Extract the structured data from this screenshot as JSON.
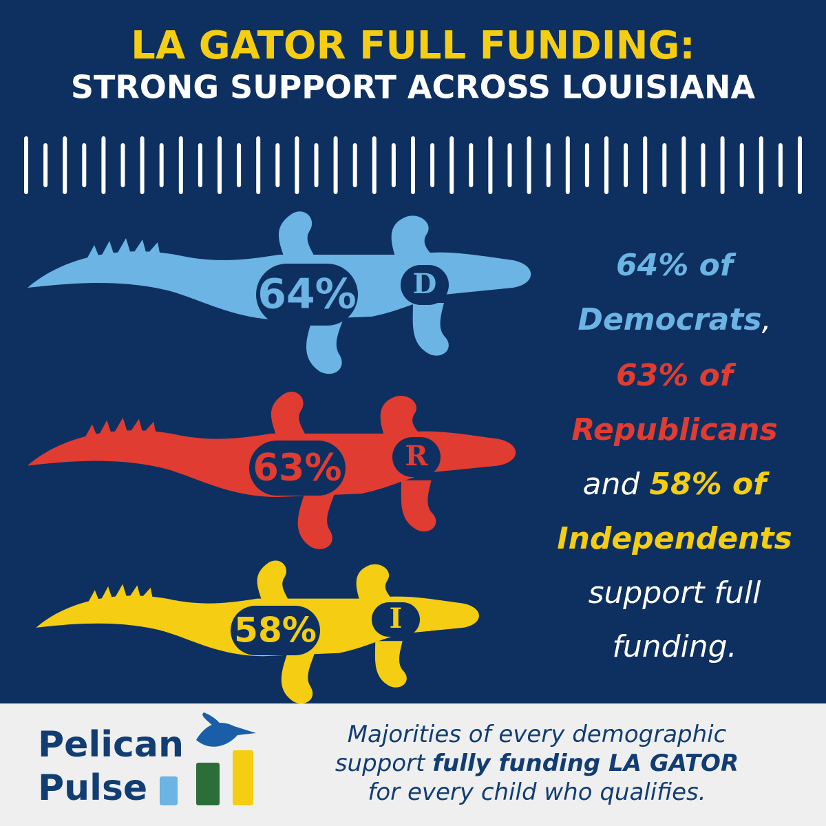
{
  "header": {
    "title": "LA GATOR FULL FUNDING:",
    "subtitle": "STRONG SUPPORT ACROSS LOUISIANA"
  },
  "gators": [
    {
      "percent": "64%",
      "letter": "D",
      "color": "#6cb4e4"
    },
    {
      "percent": "63%",
      "letter": "R",
      "color": "#e03c31"
    },
    {
      "percent": "58%",
      "letter": "I",
      "color": "#f5cd12"
    }
  ],
  "statement": [
    [
      {
        "text": "64% of",
        "color": "#6cb4e4",
        "bold": true
      }
    ],
    [
      {
        "text": "Democrats",
        "color": "#6cb4e4",
        "bold": true
      },
      {
        "text": ",",
        "color": "#ffffff",
        "bold": false
      }
    ],
    [
      {
        "text": "63% of",
        "color": "#e03c31",
        "bold": true
      }
    ],
    [
      {
        "text": "Republicans",
        "color": "#e03c31",
        "bold": true
      }
    ],
    [
      {
        "text": "and ",
        "color": "#ffffff",
        "bold": false
      },
      {
        "text": "58% of",
        "color": "#f5cd12",
        "bold": true
      }
    ],
    [
      {
        "text": "Independents",
        "color": "#f5cd12",
        "bold": true
      }
    ],
    [
      {
        "text": "support full",
        "color": "#ffffff",
        "bold": false
      }
    ],
    [
      {
        "text": "funding.",
        "color": "#ffffff",
        "bold": false
      }
    ]
  ],
  "footer": {
    "logo": [
      "Pelican",
      "Pulse"
    ],
    "tagline": [
      [
        {
          "text": "Majorities of every demographic",
          "bold": false
        }
      ],
      [
        {
          "text": "support ",
          "bold": false
        },
        {
          "text": "fully funding LA GATOR",
          "bold": true
        }
      ],
      [
        {
          "text": "for every child who qualifies.",
          "bold": false
        }
      ]
    ]
  }
}
